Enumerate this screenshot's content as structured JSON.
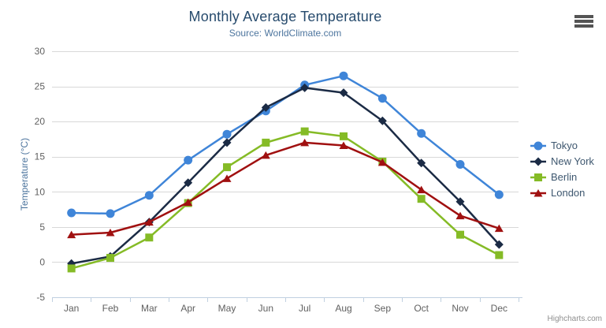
{
  "chart": {
    "credit": "Highcharts.com"
  },
  "icons": {
    "context_menu": "hamburger-menu-icon"
  },
  "colors": {
    "title_text": "#274b6d",
    "subtitle_text": "#4d759e",
    "axis_label": "#606060",
    "axis_title": "#4d759e",
    "grid_line": "#d8d8d8",
    "axis_line": "#c0d0e0",
    "legend_text": "#3E576F",
    "credit_text": "#8f8f8f",
    "menu_icon": "#545454",
    "background": "#ffffff"
  },
  "chart_data": {
    "type": "line",
    "title": "Monthly Average Temperature",
    "subtitle": "Source: WorldClimate.com",
    "categories": [
      "Jan",
      "Feb",
      "Mar",
      "Apr",
      "May",
      "Jun",
      "Jul",
      "Aug",
      "Sep",
      "Oct",
      "Nov",
      "Dec"
    ],
    "series": [
      {
        "name": "Tokyo",
        "color": "#3F85D8",
        "marker": "circle",
        "values": [
          7.0,
          6.9,
          9.5,
          14.5,
          18.2,
          21.5,
          25.2,
          26.5,
          23.3,
          18.3,
          13.9,
          9.6
        ]
      },
      {
        "name": "New York",
        "color": "#1B2B45",
        "marker": "diamond",
        "values": [
          -0.2,
          0.8,
          5.7,
          11.3,
          17.0,
          22.0,
          24.8,
          24.1,
          20.1,
          14.1,
          8.6,
          2.5
        ]
      },
      {
        "name": "Berlin",
        "color": "#85BB26",
        "marker": "square",
        "values": [
          -0.9,
          0.6,
          3.5,
          8.4,
          13.5,
          17.0,
          18.6,
          17.9,
          14.3,
          9.0,
          3.9,
          1.0
        ]
      },
      {
        "name": "London",
        "color": "#A01010",
        "marker": "triangle",
        "values": [
          3.9,
          4.2,
          5.7,
          8.5,
          11.9,
          15.2,
          17.0,
          16.6,
          14.2,
          10.3,
          6.6,
          4.8
        ]
      }
    ],
    "xlabel": "",
    "ylabel": "Temperature (°C)",
    "ylim": [
      -5,
      30
    ],
    "ytick_step": 5,
    "grid": true,
    "legend_position": "right"
  }
}
